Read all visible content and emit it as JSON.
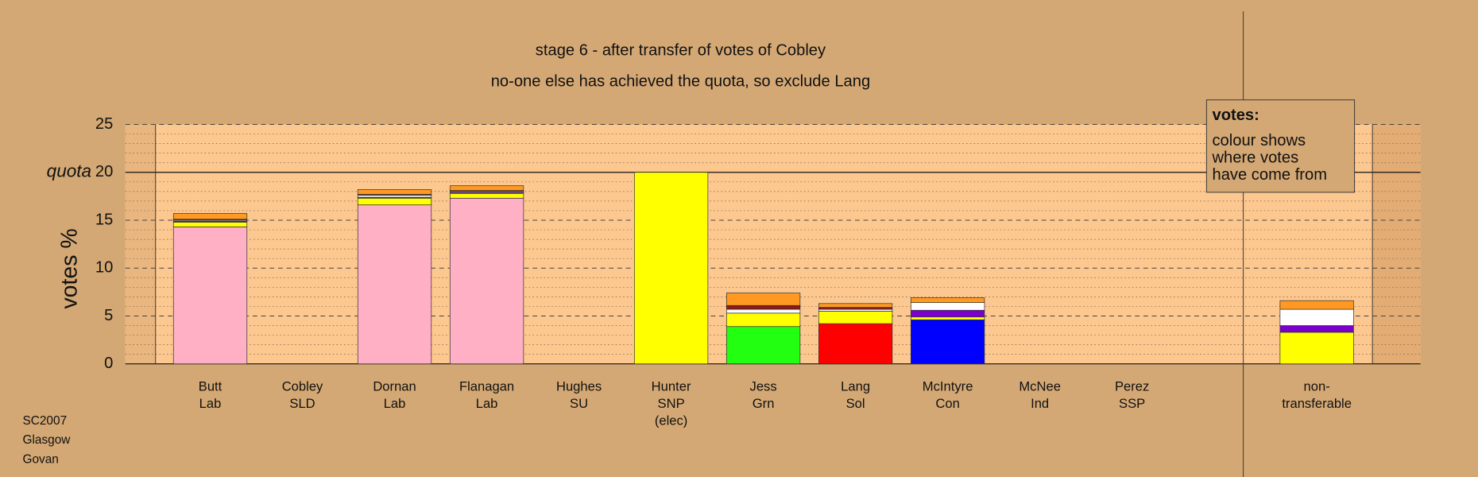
{
  "chart_data": {
    "type": "stacked-bar",
    "titles": [
      "stage 6 - after transfer of votes of Cobley",
      "no-one else has achieved the quota, so exclude Lang"
    ],
    "ylabel": "votes %",
    "categories": [
      [
        "Butt",
        "Lab"
      ],
      [
        "Cobley",
        "SLD"
      ],
      [
        "Dornan",
        "Lab"
      ],
      [
        "Flanagan",
        "Lab"
      ],
      [
        "Hughes",
        "SU"
      ],
      [
        "Hunter",
        "SNP",
        "(elec)"
      ],
      [
        "Jess",
        "Grn"
      ],
      [
        "Lang",
        "Sol"
      ],
      [
        "McIntyre",
        "Con"
      ],
      [
        "McNee",
        "Ind"
      ],
      [
        "Perez",
        "SSP"
      ],
      [
        "non-",
        "transferable"
      ]
    ],
    "series": [
      {
        "color": "#ffb0c4",
        "values": [
          14.3,
          0,
          16.6,
          17.3,
          0,
          0,
          0,
          0,
          0,
          0,
          0,
          0
        ]
      },
      {
        "color": "#22ff11",
        "values": [
          0,
          0,
          0,
          0,
          0,
          0,
          3.9,
          0,
          0,
          0,
          0,
          0
        ]
      },
      {
        "color": "#0000ff",
        "values": [
          0,
          0,
          0,
          0,
          0,
          0,
          0,
          0,
          4.6,
          0,
          0,
          0
        ]
      },
      {
        "color": "#ff0000",
        "values": [
          0,
          0,
          0,
          0,
          0,
          0,
          0,
          4.2,
          0,
          0,
          0,
          0
        ]
      },
      {
        "color": "#ffff00",
        "values": [
          0.5,
          0,
          0.7,
          0.5,
          0,
          20,
          1.4,
          1.3,
          0.3,
          0,
          0,
          3.3
        ]
      },
      {
        "color": "#7a00cc",
        "values": [
          0.1,
          0,
          0.1,
          0.1,
          0,
          0,
          0,
          0,
          0.7,
          0,
          0,
          0.7
        ]
      },
      {
        "color": "#ffffff",
        "values": [
          0.1,
          0,
          0.2,
          0.1,
          0,
          0,
          0.4,
          0.2,
          0.8,
          0,
          0,
          1.7
        ]
      },
      {
        "color": "#8b1a1a",
        "values": [
          0.1,
          0,
          0.1,
          0.1,
          0,
          0,
          0.4,
          0.2,
          0,
          0,
          0,
          0
        ]
      },
      {
        "color": "#ff9922",
        "values": [
          0.6,
          0,
          0.5,
          0.5,
          0,
          0,
          1.3,
          0.4,
          0.5,
          0,
          0,
          0.9
        ]
      }
    ],
    "ylim": [
      0,
      25
    ],
    "yticks": [
      0,
      5,
      10,
      15,
      20,
      25
    ],
    "minor_yticks": [
      1,
      2,
      3,
      4,
      6,
      7,
      8,
      9,
      11,
      12,
      13,
      14,
      16,
      17,
      18,
      19,
      21,
      22,
      23,
      24
    ],
    "quota": {
      "value": 20,
      "label": "quota"
    },
    "legend_title": "votes:",
    "legend_text": [
      "colour shows",
      "where votes",
      "have come from"
    ],
    "footnote": [
      "SC2007",
      "Glasgow",
      "Govan"
    ]
  }
}
